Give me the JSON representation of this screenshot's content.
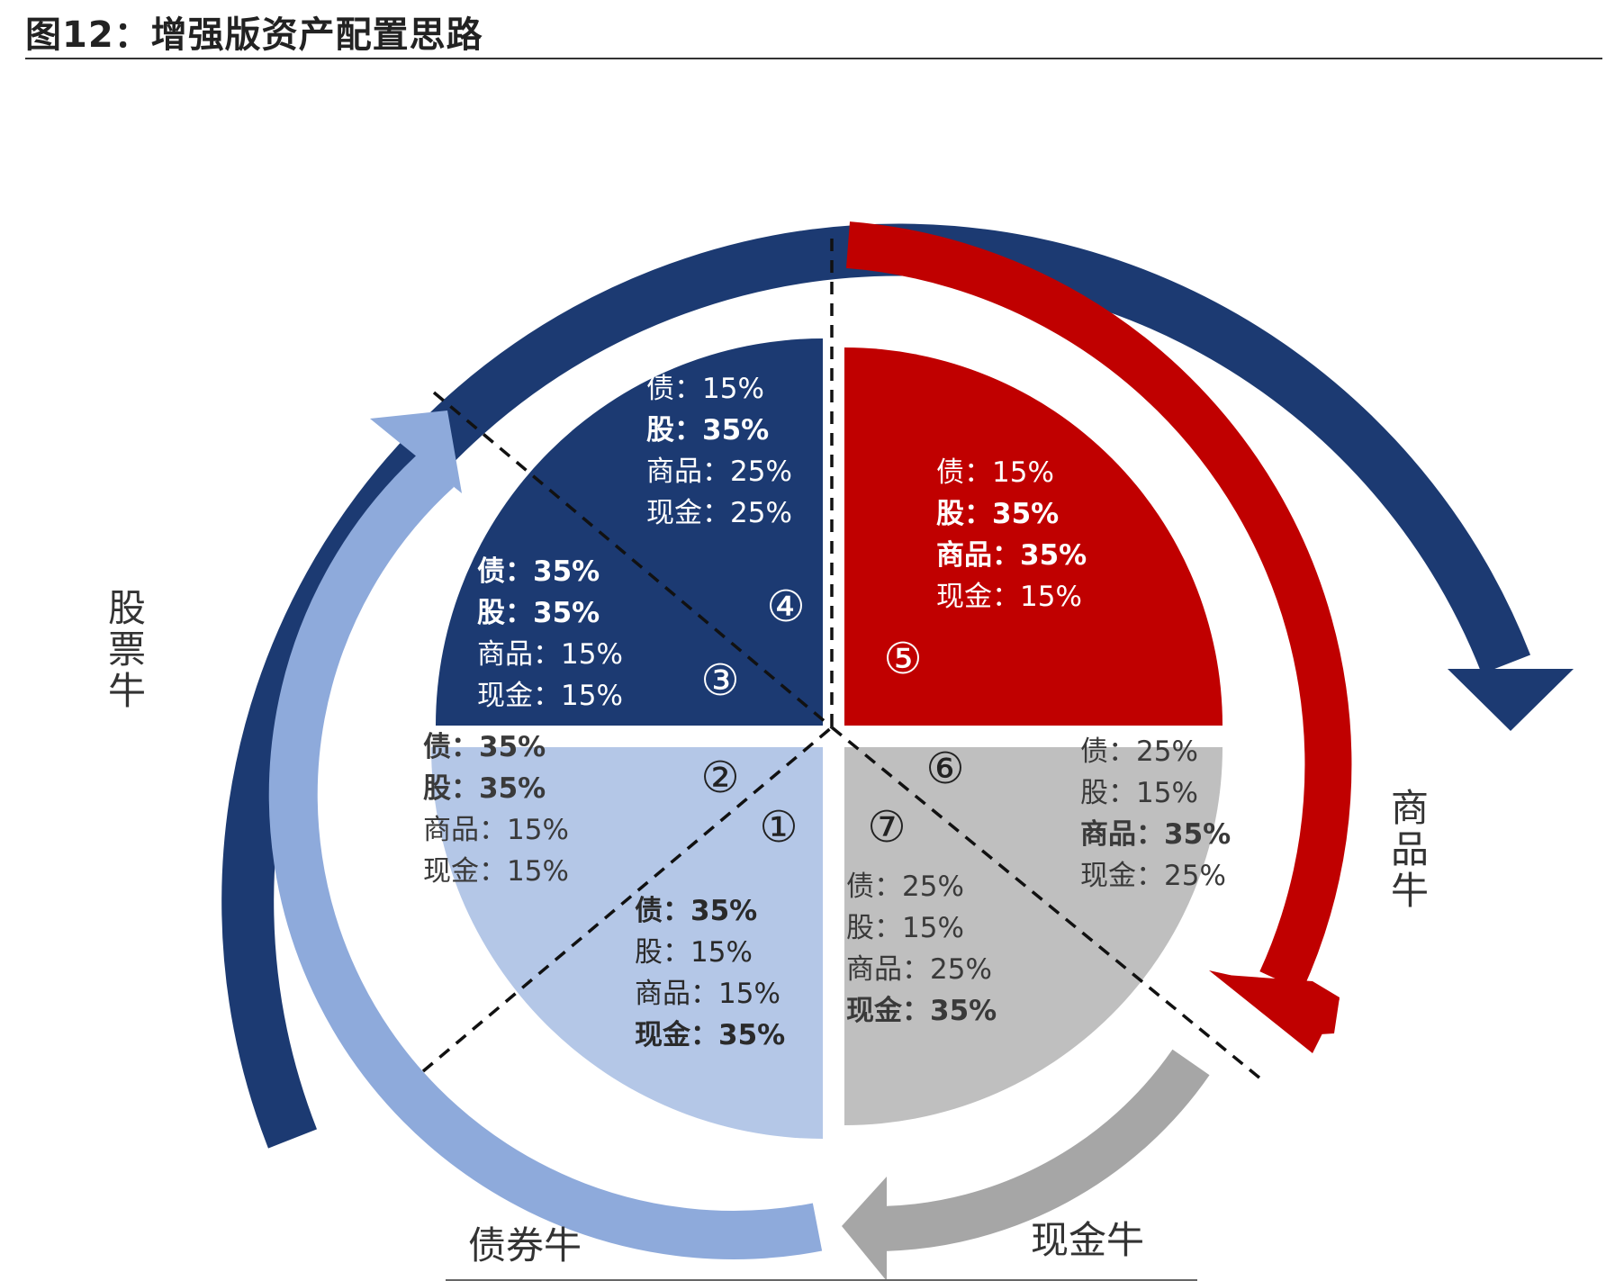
{
  "title": "图12：增强版资产配置思路",
  "arc_labels": {
    "stock": "股票牛",
    "commodity": "商品牛",
    "bond": "债券牛",
    "cash": "现金牛"
  },
  "colors": {
    "stock": "#1c3a72",
    "commodity": "#c00000",
    "bond": "#b4c7e7",
    "bond_arrow": "#8eaadb",
    "cash": "#bfbfbf",
    "cash_arrow": "#a6a6a6"
  },
  "markers": [
    "①",
    "②",
    "③",
    "④",
    "⑤",
    "⑥",
    "⑦"
  ],
  "segments": [
    {
      "id": "1",
      "lines": [
        {
          "k": "债：",
          "v": "35%",
          "b": true
        },
        {
          "k": "股：",
          "v": "15%",
          "b": false
        },
        {
          "k": "商品：",
          "v": "15%",
          "b": false
        },
        {
          "k": "现金：",
          "v": "35%",
          "b": true
        }
      ]
    },
    {
      "id": "2",
      "lines": [
        {
          "k": "债：",
          "v": "35%",
          "b": true
        },
        {
          "k": "股：",
          "v": "35%",
          "b": true
        },
        {
          "k": "商品：",
          "v": "15%",
          "b": false
        },
        {
          "k": "现金：",
          "v": "15%",
          "b": false
        }
      ]
    },
    {
      "id": "3",
      "lines": [
        {
          "k": "债：",
          "v": "35%",
          "b": true
        },
        {
          "k": "股：",
          "v": "35%",
          "b": true
        },
        {
          "k": "商品：",
          "v": "15%",
          "b": false
        },
        {
          "k": "现金：",
          "v": "15%",
          "b": false
        }
      ]
    },
    {
      "id": "4",
      "lines": [
        {
          "k": "债：",
          "v": "15%",
          "b": false
        },
        {
          "k": "股：",
          "v": "35%",
          "b": true
        },
        {
          "k": "商品：",
          "v": "25%",
          "b": false
        },
        {
          "k": "现金：",
          "v": "25%",
          "b": false
        }
      ]
    },
    {
      "id": "5",
      "lines": [
        {
          "k": "债：",
          "v": "15%",
          "b": false
        },
        {
          "k": "股：",
          "v": "35%",
          "b": true
        },
        {
          "k": "商品：",
          "v": "35%",
          "b": true
        },
        {
          "k": "现金：",
          "v": "15%",
          "b": false
        }
      ]
    },
    {
      "id": "6",
      "lines": [
        {
          "k": "债：",
          "v": "25%",
          "b": false
        },
        {
          "k": "股：",
          "v": "15%",
          "b": false
        },
        {
          "k": "商品：",
          "v": "35%",
          "b": true
        },
        {
          "k": "现金：",
          "v": "25%",
          "b": false
        }
      ]
    },
    {
      "id": "7",
      "lines": [
        {
          "k": "债：",
          "v": "25%",
          "b": false
        },
        {
          "k": "股：",
          "v": "15%",
          "b": false
        },
        {
          "k": "商品：",
          "v": "25%",
          "b": false
        },
        {
          "k": "现金：",
          "v": "35%",
          "b": true
        }
      ]
    }
  ]
}
